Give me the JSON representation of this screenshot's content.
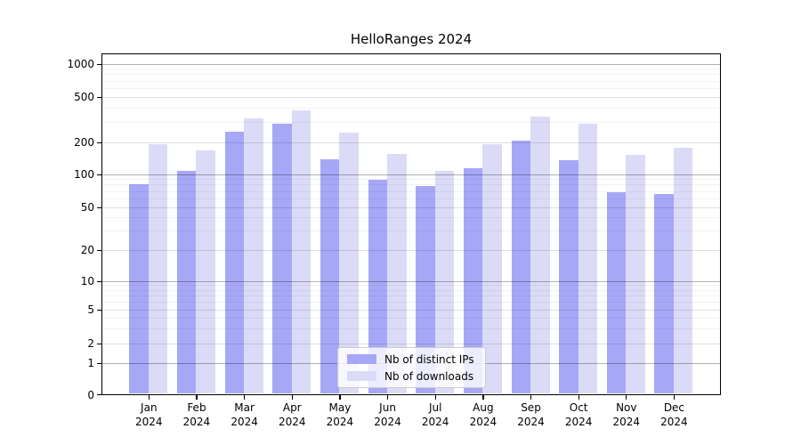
{
  "title": "HelloRanges 2024",
  "chart_data": {
    "type": "bar",
    "title": "HelloRanges 2024",
    "categories": [
      "Jan 2024",
      "Feb 2024",
      "Mar 2024",
      "Apr 2024",
      "May 2024",
      "Jun 2024",
      "Jul 2024",
      "Aug 2024",
      "Sep 2024",
      "Oct 2024",
      "Nov 2024",
      "Dec 2024"
    ],
    "series": [
      {
        "name": "Nb of distinct IPs",
        "color": "#a7a7f7",
        "values": [
          80,
          108,
          246,
          291,
          137,
          88,
          77,
          114,
          207,
          135,
          68,
          65
        ]
      },
      {
        "name": "Nb of downloads",
        "color": "#dbdbf8",
        "values": [
          192,
          168,
          323,
          380,
          242,
          155,
          108,
          192,
          332,
          288,
          152,
          178
        ]
      }
    ],
    "xlabel": "",
    "ylabel": "",
    "yscale": "symlog",
    "y_ticks": [
      0,
      1,
      2,
      5,
      10,
      20,
      50,
      100,
      200,
      500,
      1000
    ],
    "y_minor_gridlines": [
      3,
      4,
      6,
      7,
      8,
      9,
      30,
      40,
      60,
      70,
      80,
      90,
      300,
      400,
      600,
      700,
      800,
      900
    ],
    "ylim": [
      0,
      1250
    ],
    "grid": true,
    "legend_position": "lower center"
  },
  "colors": {
    "series_dark": "#a7a7f7",
    "series_light": "#dbdbf8",
    "grid_major": "rgba(0,0,0,0.30)",
    "grid_mid": "rgba(0,0,0,0.12)",
    "grid_minor": "rgba(0,0,0,0.05)",
    "spine": "#000000",
    "legend_border": "#cccccc"
  }
}
